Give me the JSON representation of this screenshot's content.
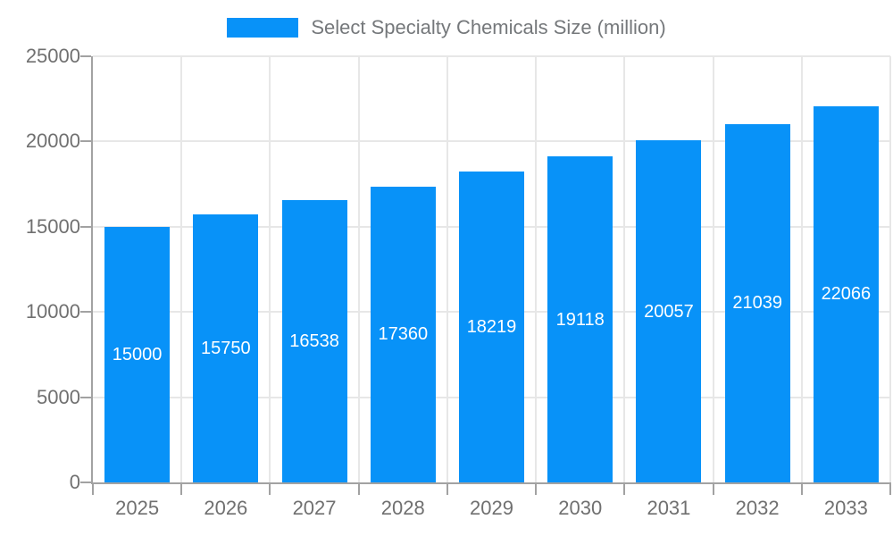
{
  "legend": {
    "label": "Select Specialty Chemicals Size (million)"
  },
  "chart_data": {
    "type": "bar",
    "categories": [
      "2025",
      "2026",
      "2027",
      "2028",
      "2029",
      "2030",
      "2031",
      "2032",
      "2033"
    ],
    "series": [
      {
        "name": "Select Specialty Chemicals Size (million)",
        "values": [
          15000,
          15750,
          16538,
          17360,
          18219,
          19118,
          20057,
          21039,
          22066
        ]
      }
    ],
    "xlabel": "",
    "ylabel": "",
    "ylim": [
      0,
      25000
    ],
    "yticks": [
      0,
      5000,
      10000,
      15000,
      20000,
      25000
    ],
    "grid": true,
    "legend_position": "top",
    "colors": {
      "bar": "#0892f8",
      "grid": "#e7e7e7",
      "axis": "#a2a2a2",
      "tick_text": "#707070",
      "legend_text": "#75787b",
      "bar_label_text": "#ffffff"
    }
  }
}
